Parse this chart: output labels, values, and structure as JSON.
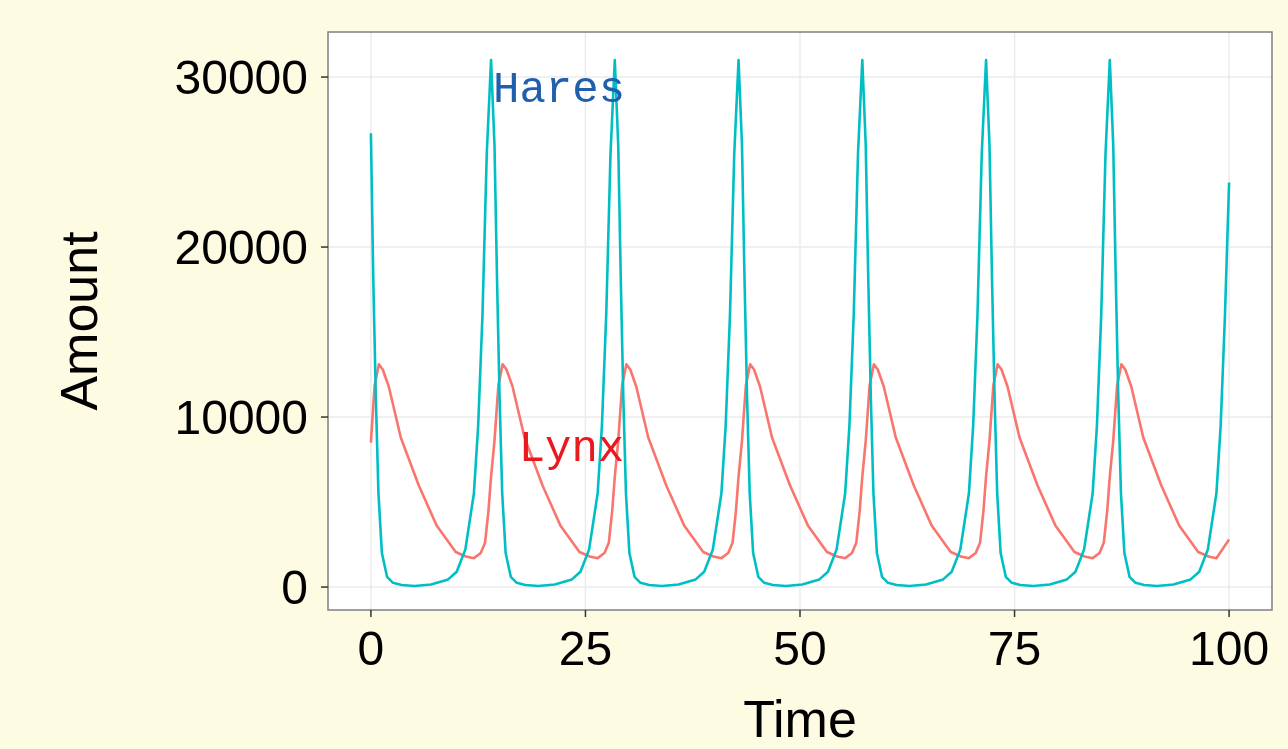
{
  "chart_data": {
    "type": "line",
    "xlabel": "Time",
    "ylabel": "Amount",
    "xlim": [
      -5,
      105
    ],
    "ylim": [
      -1350,
      32650
    ],
    "xticks": [
      0,
      25,
      50,
      75,
      100
    ],
    "yticks": [
      0,
      10000,
      20000,
      30000
    ],
    "grid": true,
    "series": [
      {
        "name": "Lynx",
        "color": "#f8766d",
        "x": [
          0,
          0.43,
          0.93,
          1.38,
          2.08,
          3.48,
          5.58,
          7.68,
          9.88,
          11.08,
          12.0,
          12.8,
          13.3,
          13.7,
          14.0,
          14.4,
          14.85,
          15.35,
          15.8,
          16.5,
          17.9,
          20.0,
          22.1,
          24.3,
          25.5,
          26.42,
          27.22,
          27.72,
          28.12,
          28.42,
          28.82,
          29.27,
          29.77,
          30.22,
          30.92,
          32.32,
          34.42,
          36.52,
          38.72,
          39.92,
          40.84,
          41.64,
          42.14,
          42.54,
          42.84,
          43.24,
          43.69,
          44.19,
          44.64,
          45.34,
          46.74,
          48.84,
          50.94,
          53.14,
          54.34,
          55.26,
          56.06,
          56.56,
          56.96,
          57.26,
          57.66,
          58.11,
          58.61,
          59.06,
          59.76,
          61.16,
          63.26,
          65.36,
          67.56,
          68.76,
          69.68,
          70.48,
          70.98,
          71.38,
          71.68,
          72.08,
          72.53,
          73.03,
          73.48,
          74.18,
          75.58,
          77.68,
          79.78,
          81.98,
          83.18,
          84.1,
          84.9,
          85.4,
          85.8,
          86.1,
          86.5,
          86.95,
          87.45,
          87.9,
          88.6,
          90.0,
          92.1,
          94.2,
          96.4,
          97.6,
          98.52,
          100
        ],
        "values": [
          8500,
          11850,
          13100,
          12800,
          11800,
          8800,
          5970,
          3600,
          2060,
          1800,
          1700,
          2000,
          2600,
          4500,
          6500,
          8600,
          11850,
          13100,
          12800,
          11800,
          8800,
          5970,
          3600,
          2060,
          1800,
          1700,
          2000,
          2600,
          4500,
          6500,
          8600,
          11850,
          13100,
          12800,
          11800,
          8800,
          5970,
          3600,
          2060,
          1800,
          1700,
          2000,
          2600,
          4500,
          6500,
          8600,
          11850,
          13100,
          12800,
          11800,
          8800,
          5970,
          3600,
          2060,
          1800,
          1700,
          2000,
          2600,
          4500,
          6500,
          8600,
          11850,
          13100,
          12800,
          11800,
          8800,
          5970,
          3600,
          2060,
          1800,
          1700,
          2000,
          2600,
          4500,
          6500,
          8600,
          11850,
          13100,
          12800,
          11800,
          8800,
          5970,
          3600,
          2060,
          1800,
          1700,
          2000,
          2600,
          4500,
          6500,
          8600,
          11850,
          13100,
          12800,
          11800,
          8800,
          5970,
          3600,
          2060,
          1800,
          1700,
          2800
        ]
      },
      {
        "name": "Hares",
        "color": "#00bfc4",
        "x": [
          0,
          0.28,
          0.58,
          0.88,
          1.28,
          1.88,
          2.58,
          3.58,
          5.08,
          7.0,
          9.0,
          10.0,
          11.0,
          12.0,
          12.5,
          13.0,
          13.5,
          14.0,
          14.4,
          14.7,
          15.0,
          15.3,
          15.7,
          16.3,
          17.0,
          18.0,
          19.5,
          21.42,
          23.42,
          24.42,
          25.42,
          26.42,
          26.92,
          27.42,
          27.92,
          28.42,
          28.82,
          29.12,
          29.42,
          29.72,
          30.12,
          30.72,
          31.42,
          32.42,
          33.92,
          35.84,
          37.84,
          38.84,
          39.84,
          40.84,
          41.34,
          41.84,
          42.34,
          42.84,
          43.24,
          43.54,
          43.84,
          44.14,
          44.54,
          45.14,
          45.84,
          46.84,
          48.34,
          50.26,
          52.26,
          53.26,
          54.26,
          55.26,
          55.76,
          56.26,
          56.76,
          57.26,
          57.66,
          57.96,
          58.26,
          58.56,
          58.96,
          59.56,
          60.26,
          61.26,
          62.76,
          64.68,
          66.68,
          67.68,
          68.68,
          69.68,
          70.18,
          70.68,
          71.18,
          71.68,
          72.08,
          72.38,
          72.68,
          72.98,
          73.38,
          73.98,
          74.68,
          75.68,
          77.18,
          79.1,
          81.1,
          82.1,
          83.1,
          84.1,
          84.6,
          85.1,
          85.6,
          86.1,
          86.5,
          86.8,
          87.1,
          87.4,
          87.8,
          88.4,
          89.1,
          90.1,
          91.6,
          93.52,
          95.52,
          96.52,
          97.52,
          98.52,
          99.02,
          99.52,
          100
        ],
        "values": [
          26700,
          18000,
          11000,
          5500,
          2000,
          600,
          250,
          120,
          60,
          150,
          450,
          900,
          2200,
          5500,
          9500,
          16000,
          25500,
          31000,
          26000,
          18000,
          11000,
          5500,
          2000,
          600,
          250,
          120,
          60,
          150,
          450,
          900,
          2200,
          5500,
          9500,
          16000,
          25500,
          31000,
          26000,
          18000,
          11000,
          5500,
          2000,
          600,
          250,
          120,
          60,
          150,
          450,
          900,
          2200,
          5500,
          9500,
          16000,
          25500,
          31000,
          26000,
          18000,
          11000,
          5500,
          2000,
          600,
          250,
          120,
          60,
          150,
          450,
          900,
          2200,
          5500,
          9500,
          16000,
          25500,
          31000,
          26000,
          18000,
          11000,
          5500,
          2000,
          600,
          250,
          120,
          60,
          150,
          450,
          900,
          2200,
          5500,
          9500,
          16000,
          25500,
          31000,
          26000,
          18000,
          11000,
          5500,
          2000,
          600,
          250,
          120,
          60,
          150,
          450,
          900,
          2200,
          5500,
          9500,
          16000,
          25500,
          31000,
          26000,
          18000,
          11000,
          5500,
          2000,
          600,
          250,
          120,
          60,
          150,
          450,
          900,
          2200,
          5500,
          9500,
          16000,
          23800
        ]
      }
    ]
  }
}
